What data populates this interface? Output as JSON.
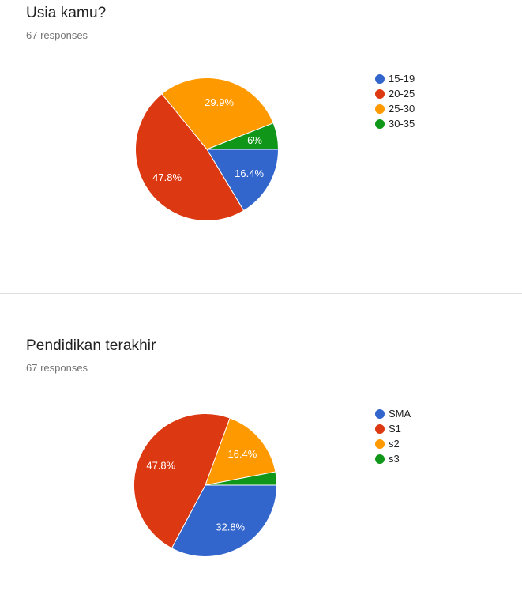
{
  "page": {
    "background": "#ffffff",
    "divider_color": "#e0e0e0",
    "text_color": "#212121",
    "muted_text_color": "#757575"
  },
  "charts": [
    {
      "title": "Usia kamu?",
      "responses": "67 responses",
      "chart_data": {
        "type": "pie",
        "labels": [
          "15-19",
          "20-25",
          "25-30",
          "30-35"
        ],
        "values": [
          16.4,
          47.8,
          29.9,
          6
        ],
        "display_labels": [
          "16.4%",
          "47.8%",
          "29.9%",
          "6%"
        ],
        "colors": [
          "#3366cc",
          "#dc3912",
          "#ff9900",
          "#109618"
        ],
        "start_angle_deg": 90,
        "legend_position": "right",
        "label_color": "#ffffff",
        "slice_border_color": "#ffffff"
      }
    },
    {
      "title": "Pendidikan terakhir",
      "responses": "67 responses",
      "chart_data": {
        "type": "pie",
        "labels": [
          "SMA",
          "S1",
          "s2",
          "s3"
        ],
        "values": [
          32.8,
          47.8,
          16.4,
          3
        ],
        "display_labels": [
          "32.8%",
          "47.8%",
          "16.4%",
          ""
        ],
        "colors": [
          "#3366cc",
          "#dc3912",
          "#ff9900",
          "#109618"
        ],
        "start_angle_deg": 90,
        "legend_position": "right",
        "label_color": "#ffffff",
        "slice_border_color": "#ffffff"
      }
    }
  ]
}
